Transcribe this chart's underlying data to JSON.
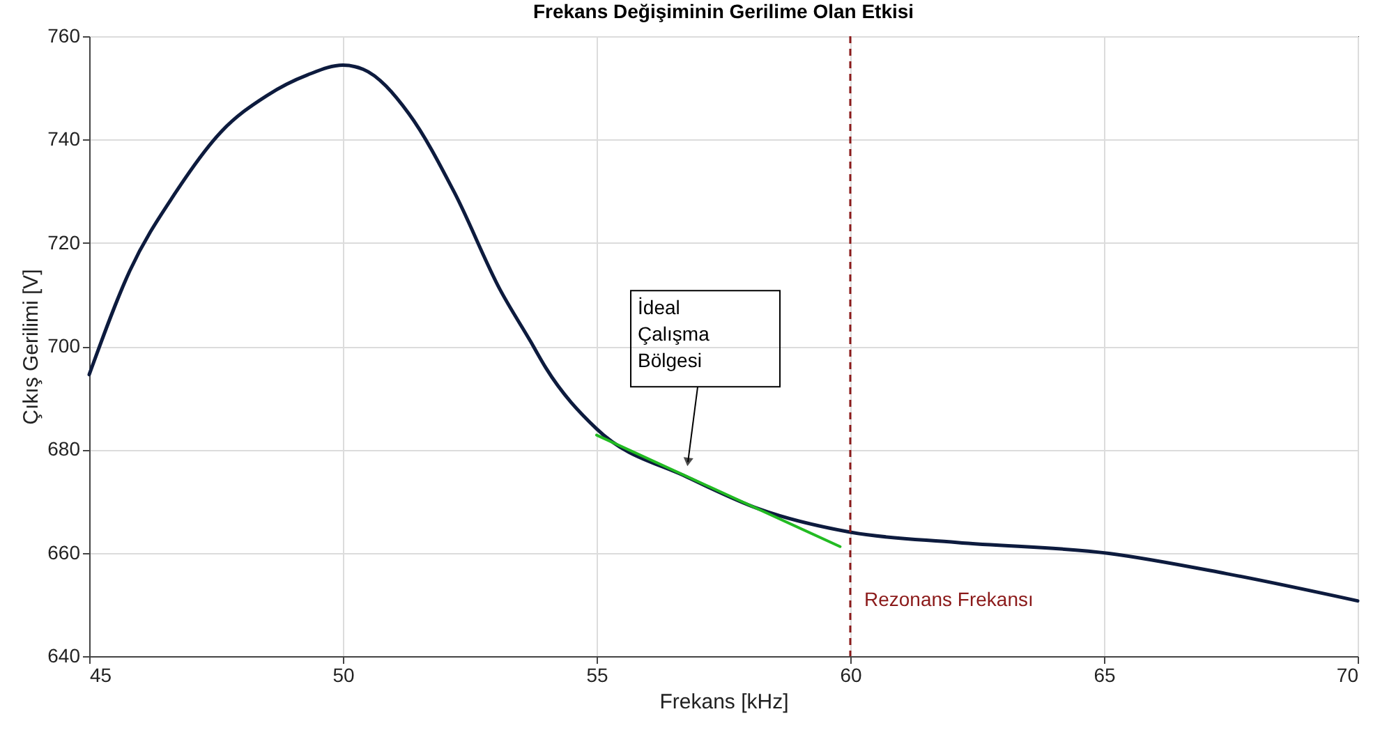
{
  "chart_data": {
    "type": "line",
    "title": "Frekans Değişiminin Gerilime Olan Etkisi",
    "xlabel": "Frekans [kHz]",
    "ylabel": "Çıkış Gerilimi [V]",
    "series": [
      {
        "color": "#0d1b3e",
        "x": [
          45,
          45.8,
          46.7,
          47.6,
          48.5,
          49.3,
          50,
          50.4,
          51.3,
          52.2,
          53.1,
          53.7,
          54,
          55,
          56.8,
          58.2,
          60,
          62.1,
          65.1,
          67.4,
          70
        ],
        "values": [
          694.5,
          714.6,
          729.7,
          741.5,
          748.5,
          752.5,
          754.4,
          753.6,
          745,
          729.7,
          710.9,
          700.9,
          695.8,
          684,
          674.6,
          668.5,
          664,
          662,
          659.9,
          656,
          650.7
        ]
      },
      {
        "color": "#22bb22",
        "x": [
          55,
          59.8
        ],
        "values": [
          682.8,
          661.2
        ]
      }
    ],
    "xlim": [
      45,
      70
    ],
    "ylim": [
      640,
      760
    ],
    "xticks": [
      45,
      50,
      55,
      60,
      65,
      70
    ],
    "yticks": [
      640,
      660,
      680,
      700,
      720,
      740,
      760
    ],
    "grid": true,
    "marker": "none",
    "line_style": "solid",
    "ref_lines": [
      {
        "axis": "x",
        "value": 60,
        "label": "Rezonans Frekansı",
        "color": "#8b1a1a",
        "line_style": "dashed"
      }
    ],
    "annotations": [
      {
        "text": "İdeal\nÇalışma\nBölgesi",
        "x": 56.8,
        "y": 676.5
      }
    ]
  }
}
